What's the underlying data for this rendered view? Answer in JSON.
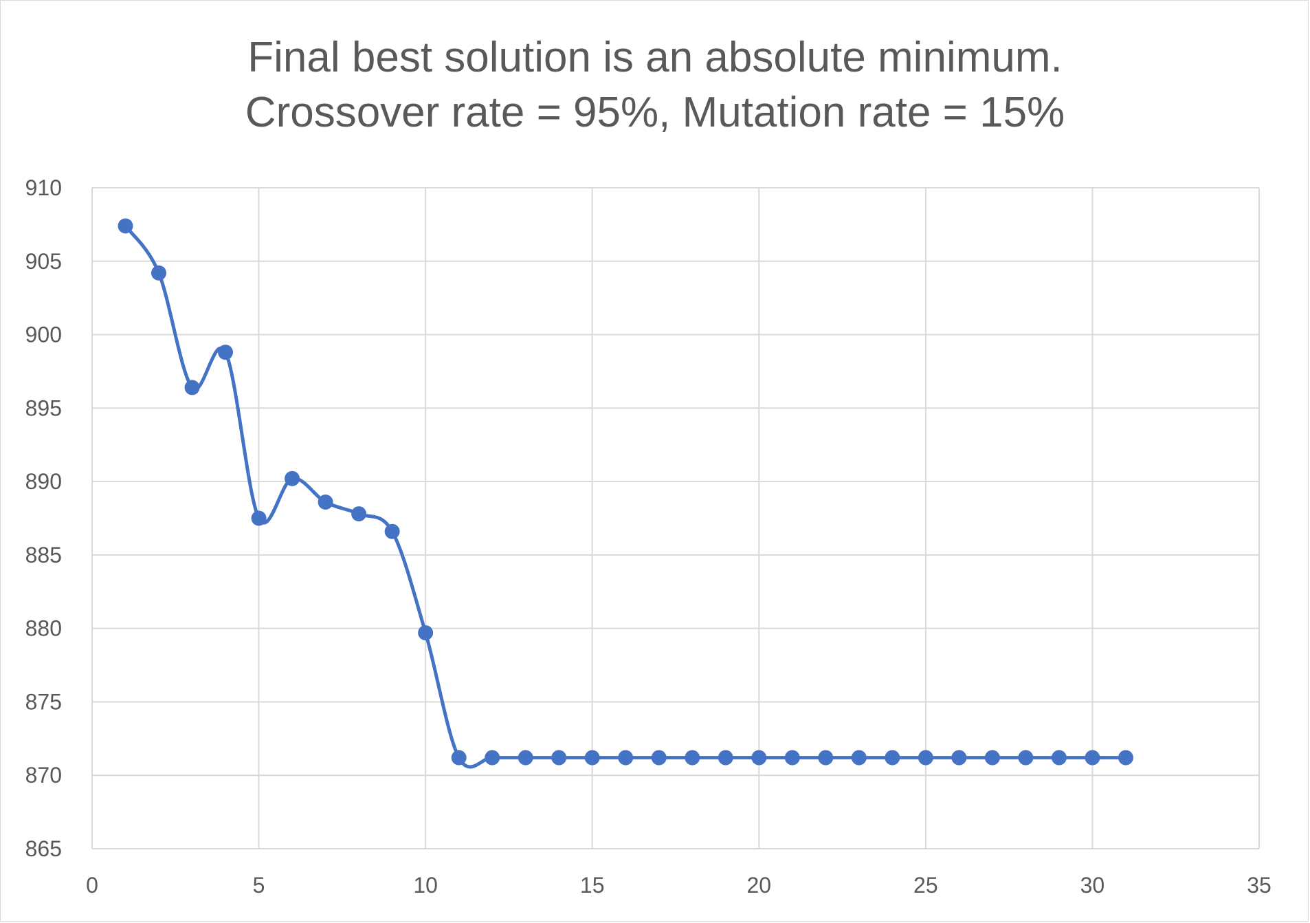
{
  "chart_data": {
    "type": "scatter",
    "title_lines": [
      "Final best solution is an absolute minimum.",
      "Crossover rate = 95%, Mutation rate = 15%"
    ],
    "xlabel": "",
    "ylabel": "",
    "xlim": [
      0,
      35
    ],
    "ylim": [
      865,
      910
    ],
    "x_ticks": [
      0,
      5,
      10,
      15,
      20,
      25,
      30,
      35
    ],
    "y_ticks": [
      865,
      870,
      875,
      880,
      885,
      890,
      895,
      900,
      905,
      910
    ],
    "grid": true,
    "legend": "none",
    "smooth_line": true,
    "markers": true,
    "series": [
      {
        "color": "#4472c4",
        "x": [
          1,
          2,
          3,
          4,
          5,
          6,
          7,
          8,
          9,
          10,
          11,
          12,
          13,
          14,
          15,
          16,
          17,
          18,
          19,
          20,
          21,
          22,
          23,
          24,
          25,
          26,
          27,
          28,
          29,
          30,
          31
        ],
        "y": [
          907.4,
          904.2,
          896.4,
          898.8,
          887.5,
          890.2,
          888.6,
          887.8,
          886.6,
          879.7,
          871.2,
          871.2,
          871.2,
          871.2,
          871.2,
          871.2,
          871.2,
          871.2,
          871.2,
          871.2,
          871.2,
          871.2,
          871.2,
          871.2,
          871.2,
          871.2,
          871.2,
          871.2,
          871.2,
          871.2,
          871.2
        ]
      }
    ]
  }
}
